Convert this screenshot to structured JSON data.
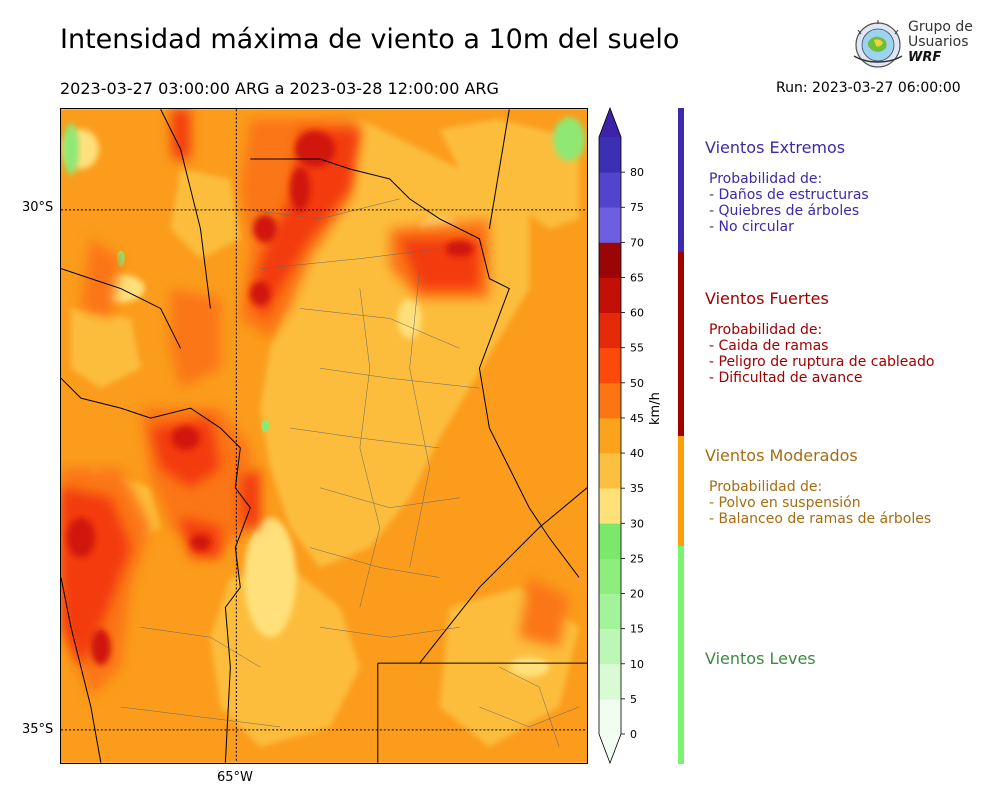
{
  "title": "Intensidad máxima de viento a 10m del suelo",
  "period": "2023-03-27 03:00:00 ARG  a  2023-03-28 12:00:00 ARG",
  "run": "Run: 2023-03-27 06:00:00",
  "logo": {
    "line1": "Grupo de",
    "line2": "Usuarios",
    "line3": "WRF"
  },
  "map": {
    "lat_labels": [
      "30°S",
      "35°S"
    ],
    "lon_labels": [
      "65°W"
    ]
  },
  "colorbar": {
    "unit": "km/h",
    "ticks": [
      "0",
      "5",
      "10",
      "15",
      "20",
      "25",
      "30",
      "35",
      "40",
      "45",
      "50",
      "55",
      "60",
      "65",
      "70",
      "75",
      "80"
    ],
    "colors": [
      "#f0fdf0",
      "#d8fbd4",
      "#bdf7b6",
      "#a3f39a",
      "#8ded7d",
      "#7ae868",
      "#ffe17a",
      "#fcc040",
      "#fba31c",
      "#fb7612",
      "#fc4a0a",
      "#e52a09",
      "#c21007",
      "#9a0606",
      "#6e5fe0",
      "#5244cc",
      "#3d2fb4"
    ],
    "extend_low": "#f3fdf3",
    "extend_high": "#3c23a8"
  },
  "categories": [
    {
      "name": "Vientos Extremos",
      "color": "#3a2aa8",
      "heading": "Probabilidad de:",
      "items": [
        "- Daños de estructuras",
        "- Quiebres de árboles",
        "- No circular"
      ]
    },
    {
      "name": "Vientos Fuertes",
      "color": "#a00000",
      "heading": "Probabilidad de:",
      "items": [
        "- Caida de ramas",
        "- Peligro de ruptura de cableado",
        "- Dificultad de avance"
      ]
    },
    {
      "name": "Vientos Moderados",
      "color": "#a66c10",
      "heading": "Probabilidad de:",
      "items": [
        "- Polvo en suspensión",
        "- Balanceo de ramas de árboles"
      ]
    },
    {
      "name": "Vientos Leves",
      "color": "#3d8a3d",
      "heading": "",
      "items": []
    }
  ],
  "category_bar_colors": [
    "#3e2ab0",
    "#a00000",
    "#fb9e0a",
    "#78f56c"
  ]
}
